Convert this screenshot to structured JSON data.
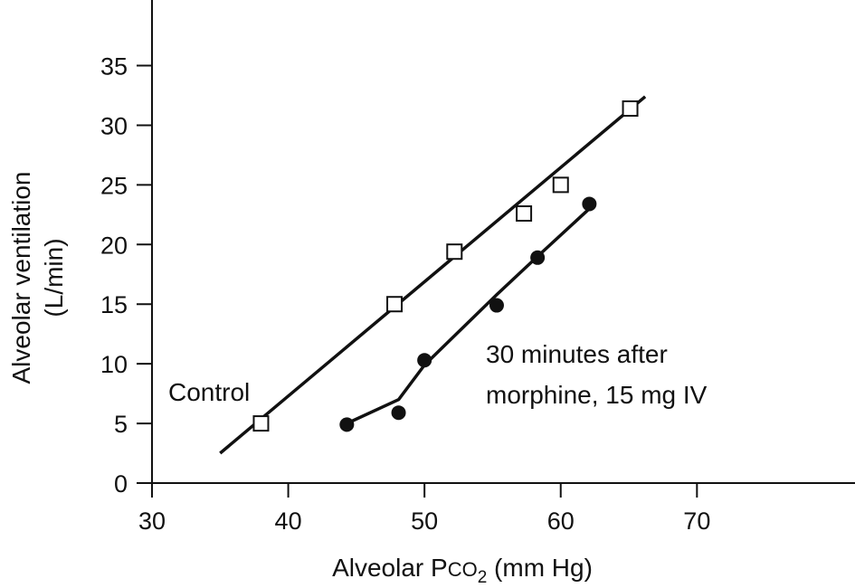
{
  "chart_data": {
    "type": "scatter",
    "title": "",
    "xlabel": {
      "prefix": "Alveolar P",
      "sc": "CO",
      "sub": "2",
      "suffix": " (mm Hg)"
    },
    "ylabel": {
      "line1": "Alveolar ventilation",
      "line2": "(L/min)"
    },
    "xlim": [
      30,
      81.6
    ],
    "ylim": [
      0,
      40.5
    ],
    "xticks": [
      30,
      40,
      50,
      60,
      70
    ],
    "yticks": [
      0,
      5,
      10,
      15,
      20,
      25,
      30,
      35
    ],
    "series": [
      {
        "name": "Control",
        "marker": "open-square",
        "points": [
          [
            38,
            5
          ],
          [
            47.8,
            15
          ],
          [
            52.2,
            19.4
          ],
          [
            57.3,
            22.6
          ],
          [
            60,
            25
          ],
          [
            65.1,
            31.4
          ]
        ],
        "fit_line": [
          [
            35,
            2.5
          ],
          [
            66.2,
            32.4
          ]
        ]
      },
      {
        "name": "30 minutes after morphine, 15 mg IV",
        "marker": "filled-circle",
        "points": [
          [
            44.3,
            4.9
          ],
          [
            48.1,
            5.9
          ],
          [
            50,
            10.3
          ],
          [
            55.3,
            14.9
          ],
          [
            58.3,
            18.9
          ],
          [
            62.1,
            23.4
          ]
        ],
        "fit_line": [
          [
            44.3,
            5.0
          ],
          [
            48.1,
            7.0
          ],
          [
            50,
            9.9
          ],
          [
            55.3,
            15.8
          ],
          [
            58.3,
            19.0
          ],
          [
            62.1,
            23.0
          ]
        ]
      }
    ],
    "annotations": {
      "control": "Control",
      "morphine_line1": "30 minutes after",
      "morphine_line2": "morphine, 15 mg IV"
    }
  }
}
